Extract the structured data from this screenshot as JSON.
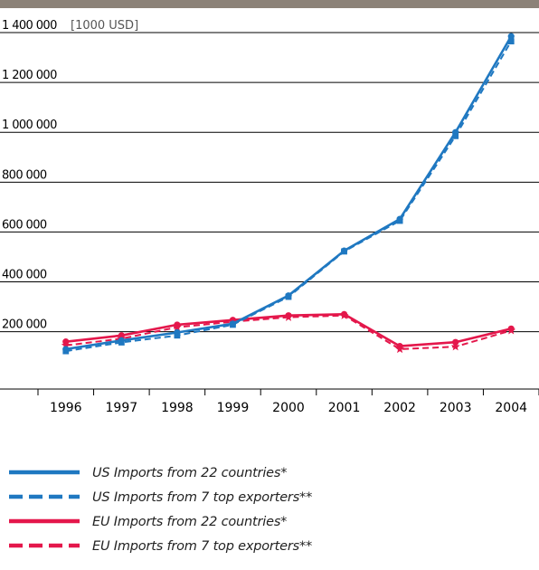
{
  "chart_data": {
    "type": "line",
    "unit_label": "[1000 USD]",
    "categories": [
      "1996",
      "1997",
      "1998",
      "1999",
      "2000",
      "2001",
      "2002",
      "2003",
      "2004"
    ],
    "y_ticks": [
      {
        "value": 200000,
        "label": "200 000"
      },
      {
        "value": 400000,
        "label": "400 000"
      },
      {
        "value": 600000,
        "label": "600 000"
      },
      {
        "value": 800000,
        "label": "800 000"
      },
      {
        "value": 1000000,
        "label": "1 000 000"
      },
      {
        "value": 1200000,
        "label": "1 200 000"
      },
      {
        "value": 1400000,
        "label": "1 400 000"
      }
    ],
    "ylim": [
      -30000,
      1400000
    ],
    "grid": true,
    "legend_position": "bottom",
    "series": [
      {
        "name": "US Imports from 22 countries*",
        "color": "#1f78c1",
        "dash": false,
        "marker": "circle",
        "values": [
          130000,
          165000,
          197000,
          232000,
          345000,
          525000,
          652000,
          1000000,
          1385000
        ]
      },
      {
        "name": "US Imports from 7 top exporters**",
        "color": "#1f78c1",
        "dash": true,
        "marker": "square",
        "values": [
          122000,
          157000,
          185000,
          228000,
          340000,
          522000,
          645000,
          985000,
          1365000
        ]
      },
      {
        "name": "EU Imports from 22 countries*",
        "color": "#e4174b",
        "dash": false,
        "marker": "circle",
        "values": [
          160000,
          185000,
          228000,
          247000,
          265000,
          270000,
          142000,
          158000,
          212000
        ]
      },
      {
        "name": "EU Imports from 7 top exporters**",
        "color": "#e4174b",
        "dash": true,
        "marker": "star",
        "values": [
          145000,
          172000,
          218000,
          240000,
          258000,
          265000,
          130000,
          140000,
          205000
        ]
      }
    ]
  }
}
